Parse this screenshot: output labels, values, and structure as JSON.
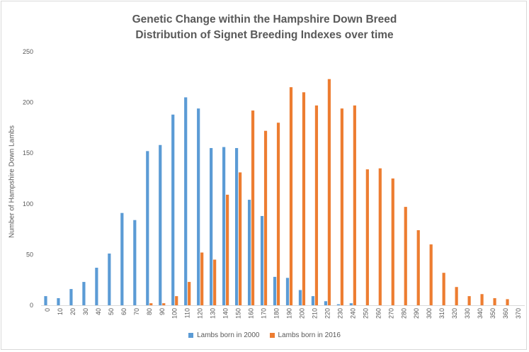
{
  "chart_data": {
    "type": "bar",
    "title": "Genetic Change within the Hampshire Down Breed",
    "subtitle": "Distribution of Signet Breeding Indexes over time",
    "xlabel": "",
    "ylabel": "Number of Hampshire Down Lambs",
    "ylim": [
      0,
      250
    ],
    "yticks": [
      "0",
      "50",
      "100",
      "150",
      "200",
      "250"
    ],
    "grid": false,
    "legend_position": "bottom",
    "categories": [
      "0",
      "10",
      "20",
      "30",
      "40",
      "50",
      "60",
      "70",
      "80",
      "90",
      "100",
      "110",
      "120",
      "130",
      "140",
      "150",
      "160",
      "170",
      "180",
      "190",
      "200",
      "210",
      "220",
      "230",
      "240",
      "250",
      "260",
      "270",
      "280",
      "290",
      "300",
      "310",
      "320",
      "330",
      "340",
      "350",
      "360",
      "370"
    ],
    "series": [
      {
        "name": "Lambs born in 2000",
        "color": "#5b9bd5",
        "values": [
          9,
          7,
          16,
          23,
          37,
          51,
          91,
          84,
          152,
          158,
          188,
          205,
          194,
          155,
          156,
          155,
          104,
          88,
          28,
          27,
          15,
          9,
          4,
          1,
          2,
          0,
          0,
          0,
          0,
          0,
          0,
          0,
          0,
          0,
          0,
          0,
          0,
          0
        ]
      },
      {
        "name": "Lambs born in 2016",
        "color": "#ed7d31",
        "values": [
          0,
          0,
          0,
          0,
          0,
          0,
          0,
          0,
          2,
          2,
          9,
          23,
          52,
          45,
          109,
          131,
          192,
          172,
          180,
          215,
          210,
          197,
          223,
          194,
          197,
          134,
          135,
          125,
          97,
          74,
          60,
          32,
          18,
          9,
          11,
          7,
          6,
          0
        ]
      }
    ]
  }
}
